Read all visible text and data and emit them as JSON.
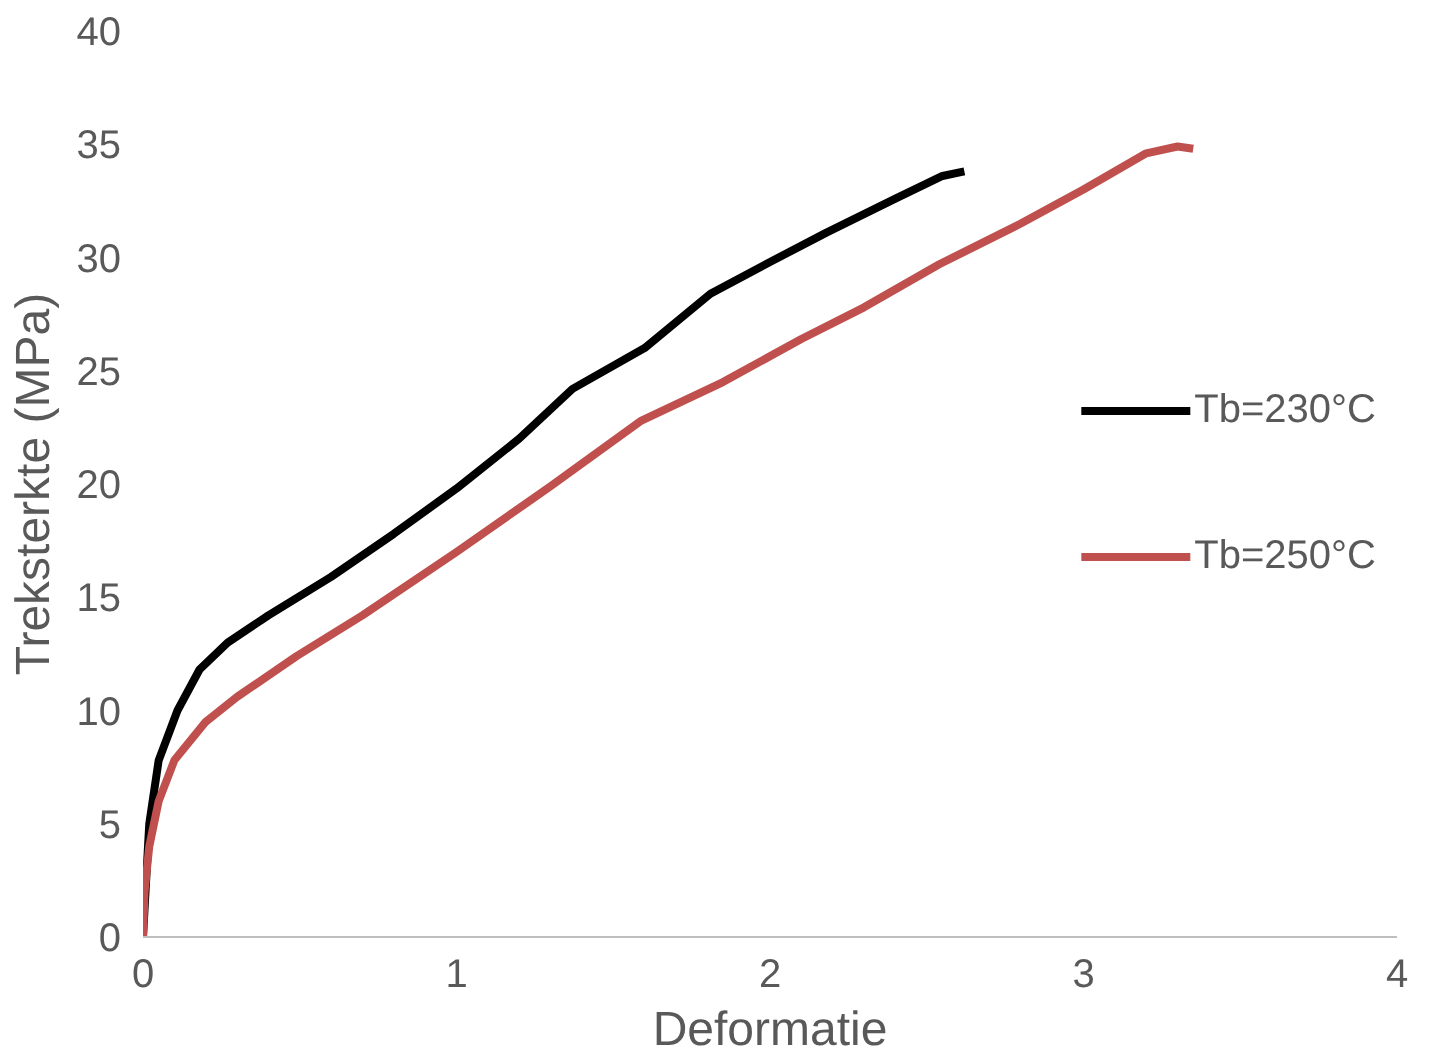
{
  "chart_data": {
    "type": "line",
    "xlabel": "Deformatie",
    "ylabel": "Treksterkte (MPa)",
    "xlim": [
      0,
      4
    ],
    "ylim": [
      0,
      40
    ],
    "xticks": [
      0,
      1,
      2,
      3,
      4
    ],
    "yticks": [
      0,
      5,
      10,
      15,
      20,
      25,
      30,
      35,
      40
    ],
    "grid": false,
    "legend": "right",
    "marker": "none",
    "line_style": "solid",
    "series": [
      {
        "name": "Tb=230°C",
        "color": "#000000",
        "x": [
          0,
          0.02,
          0.05,
          0.11,
          0.18,
          0.27,
          0.4,
          0.6,
          0.8,
          1.0,
          1.2,
          1.37,
          1.6,
          1.81,
          2.0,
          2.18,
          2.4,
          2.55,
          2.62
        ],
        "values": [
          0,
          5,
          7.8,
          10,
          11.8,
          13,
          14.2,
          15.9,
          17.8,
          19.8,
          22,
          24.2,
          26,
          28.4,
          29.8,
          31.1,
          32.6,
          33.6,
          33.8
        ]
      },
      {
        "name": "Tb=250°C",
        "color": "#c0504d",
        "x": [
          0,
          0.005,
          0.02,
          0.05,
          0.1,
          0.2,
          0.3,
          0.49,
          0.7,
          1.0,
          1.3,
          1.59,
          1.85,
          2.1,
          2.3,
          2.54,
          2.8,
          3.0,
          3.2,
          3.3,
          3.35
        ],
        "values": [
          0,
          2,
          4,
          6,
          7.8,
          9.5,
          10.6,
          12.4,
          14.2,
          17,
          19.9,
          22.8,
          24.5,
          26.4,
          27.8,
          29.7,
          31.5,
          33,
          34.6,
          34.9,
          34.8
        ]
      }
    ]
  }
}
